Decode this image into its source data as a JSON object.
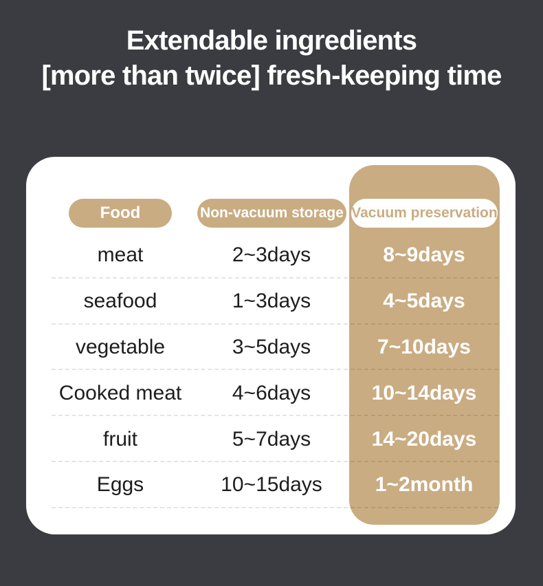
{
  "colors": {
    "background": "#3a3c42",
    "accent": "#c9ac82",
    "card": "#ffffff",
    "row_text": "#1d1d1d",
    "vacuum_text": "#ffffff"
  },
  "title": {
    "line1": "Extendable ingredients",
    "line2": "[more than twice] fresh-keeping time"
  },
  "table": {
    "headers": {
      "food": "Food",
      "non_vacuum": "Non-vacuum storage",
      "vacuum": "Vacuum preservation"
    },
    "rows": [
      {
        "food": "meat",
        "non_vacuum": "2~3days",
        "vacuum": "8~9days"
      },
      {
        "food": "seafood",
        "non_vacuum": "1~3days",
        "vacuum": "4~5days"
      },
      {
        "food": "vegetable",
        "non_vacuum": "3~5days",
        "vacuum": "7~10days"
      },
      {
        "food": "Cooked meat",
        "non_vacuum": "4~6days",
        "vacuum": "10~14days"
      },
      {
        "food": "fruit",
        "non_vacuum": "5~7days",
        "vacuum": "14~20days"
      },
      {
        "food": "Eggs",
        "non_vacuum": "10~15days",
        "vacuum": "1~2month"
      }
    ]
  },
  "chart_data": {
    "type": "table",
    "title": "Extendable ingredients [more than twice] fresh-keeping time",
    "columns": [
      "Food",
      "Non-vacuum storage",
      "Vacuum preservation"
    ],
    "rows": [
      [
        "meat",
        "2~3days",
        "8~9days"
      ],
      [
        "seafood",
        "1~3days",
        "4~5days"
      ],
      [
        "vegetable",
        "3~5days",
        "7~10days"
      ],
      [
        "Cooked meat",
        "4~6days",
        "10~14days"
      ],
      [
        "fruit",
        "5~7days",
        "14~20days"
      ],
      [
        "Eggs",
        "10~15days",
        "1~2month"
      ]
    ]
  }
}
